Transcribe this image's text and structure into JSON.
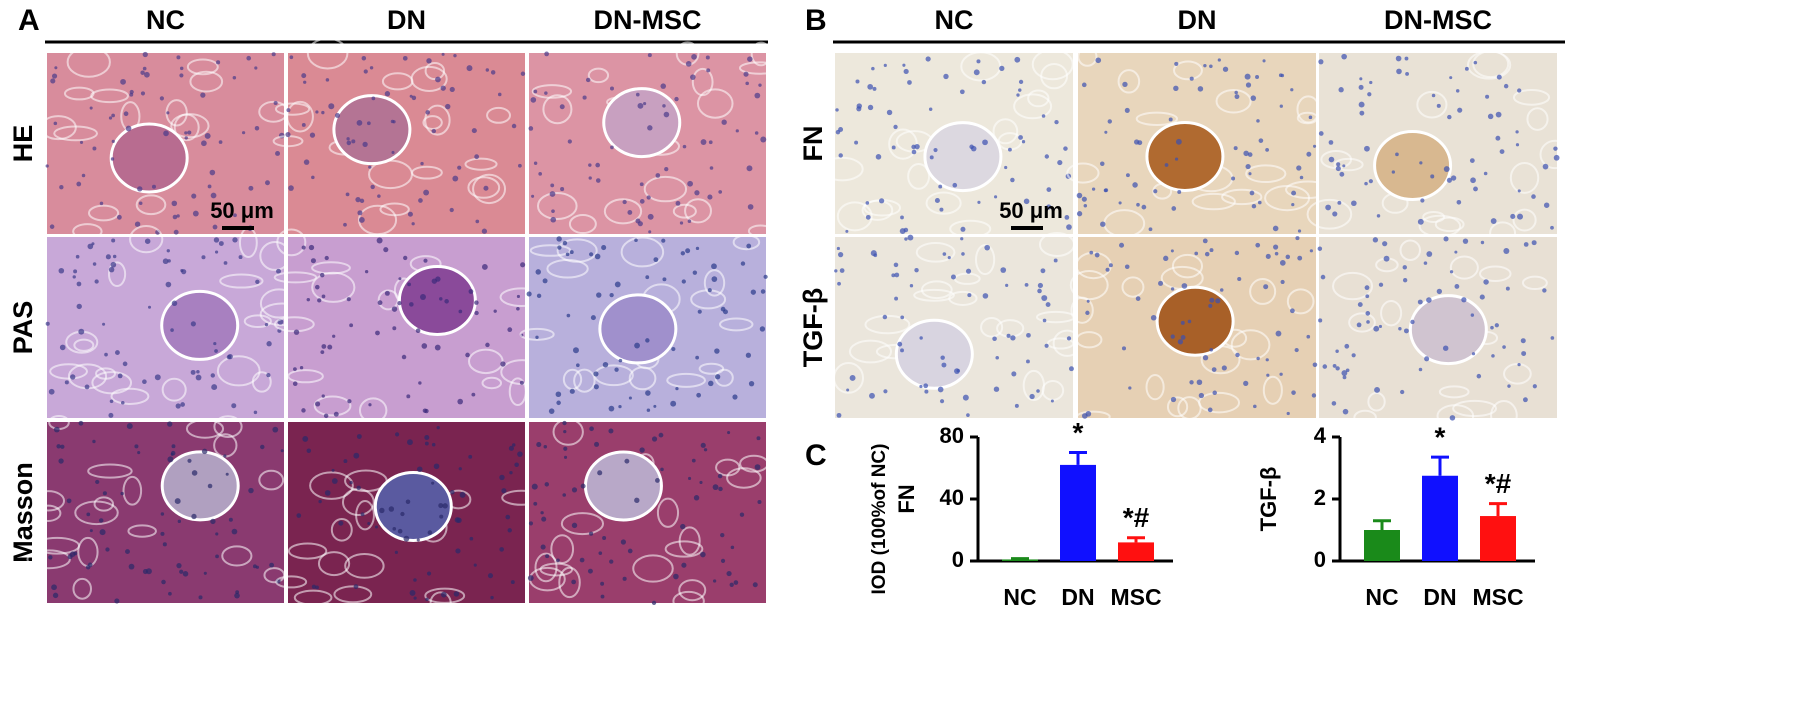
{
  "panel_a": {
    "label": "A",
    "columns": [
      "NC",
      "DN",
      "DN-MSC"
    ],
    "rows": [
      "HE",
      "PAS",
      "Masson"
    ],
    "scale_bar": "50 μm"
  },
  "panel_b": {
    "label": "B",
    "columns": [
      "NC",
      "DN",
      "DN-MSC"
    ],
    "rows": [
      "FN",
      "TGF-β"
    ],
    "scale_bar": "50 μm"
  },
  "panel_c": {
    "label": "C"
  },
  "chart_data": [
    {
      "type": "bar",
      "ylabel": "FN",
      "ylabel_note": "IOD (100%of NC)",
      "categories": [
        "NC",
        "DN",
        "MSC"
      ],
      "values": [
        1,
        62,
        12
      ],
      "errors": [
        0.5,
        8,
        3
      ],
      "colors": [
        "#1a8a1a",
        "#1010ff",
        "#ff1010"
      ],
      "annotations": [
        null,
        "*",
        "*#"
      ],
      "ylim": [
        0,
        80
      ],
      "yticks": [
        0,
        40,
        80
      ]
    },
    {
      "type": "bar",
      "ylabel": "TGF-β",
      "categories": [
        "NC",
        "DN",
        "MSC"
      ],
      "values": [
        1.0,
        2.75,
        1.45
      ],
      "errors": [
        0.3,
        0.6,
        0.4
      ],
      "colors": [
        "#1a8a1a",
        "#1010ff",
        "#ff1010"
      ],
      "annotations": [
        null,
        "*",
        "*#"
      ],
      "ylim": [
        0,
        4
      ],
      "yticks": [
        0,
        2,
        4
      ]
    }
  ]
}
